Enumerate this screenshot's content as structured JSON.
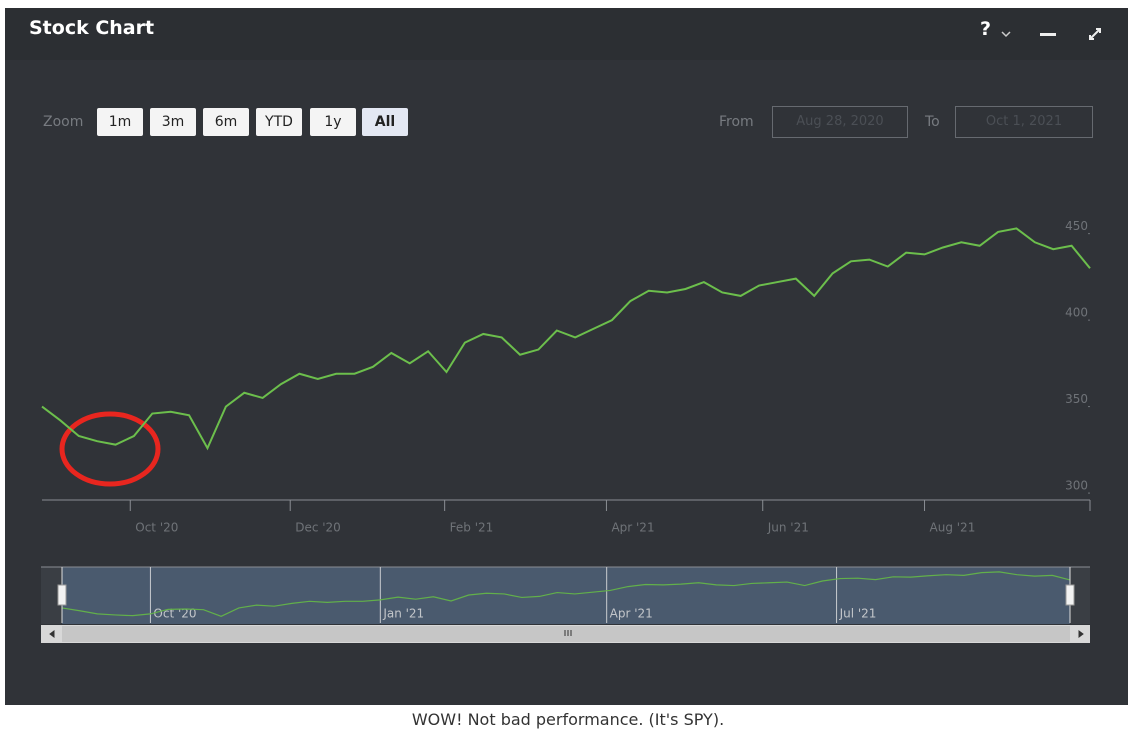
{
  "header": {
    "title": "Stock Chart",
    "help": "?"
  },
  "zoom": {
    "label": "Zoom",
    "buttons": [
      "1m",
      "3m",
      "6m",
      "YTD",
      "1y",
      "All"
    ],
    "active": 5
  },
  "range": {
    "from_label": "From",
    "from": "Aug 28, 2020",
    "to_label": "To",
    "to": "Oct 1, 2021"
  },
  "chart_data": {
    "type": "line",
    "color": "#6cbf4c",
    "values": [
      350,
      342,
      333,
      330,
      328,
      333,
      346,
      347,
      345,
      326,
      350,
      358,
      355,
      363,
      369,
      366,
      369,
      369,
      373,
      381,
      375,
      382,
      370,
      387,
      392,
      390,
      380,
      383,
      394,
      390,
      395,
      400,
      411,
      417,
      416,
      418,
      422,
      416,
      414,
      420,
      422,
      424,
      414,
      427,
      434,
      435,
      431,
      439,
      438,
      442,
      445,
      443,
      451,
      453,
      445,
      441,
      443,
      430
    ],
    "xlim": [
      0,
      57
    ],
    "xticks": [
      {
        "value": 4.8,
        "label": "Oct '20"
      },
      {
        "value": 13.5,
        "label": "Dec '20"
      },
      {
        "value": 21.9,
        "label": "Feb '21"
      },
      {
        "value": 30.7,
        "label": "Apr '21"
      },
      {
        "value": 39.2,
        "label": "Jun '21"
      },
      {
        "value": 48.0,
        "label": "Aug '21"
      }
    ],
    "ylim": [
      296,
      492
    ],
    "yticks": [
      300,
      350,
      400,
      450
    ],
    "navigator": {
      "color": "#62b04a",
      "ylim": [
        307,
        467
      ],
      "xticks": [
        {
          "value": 5.0,
          "label": "Oct '20"
        },
        {
          "value": 18.0,
          "label": "Jan '21"
        },
        {
          "value": 30.8,
          "label": "Apr '21"
        },
        {
          "value": 43.8,
          "label": "Jul '21"
        }
      ]
    }
  },
  "caption": "WOW! Not bad performance. (It's SPY)."
}
